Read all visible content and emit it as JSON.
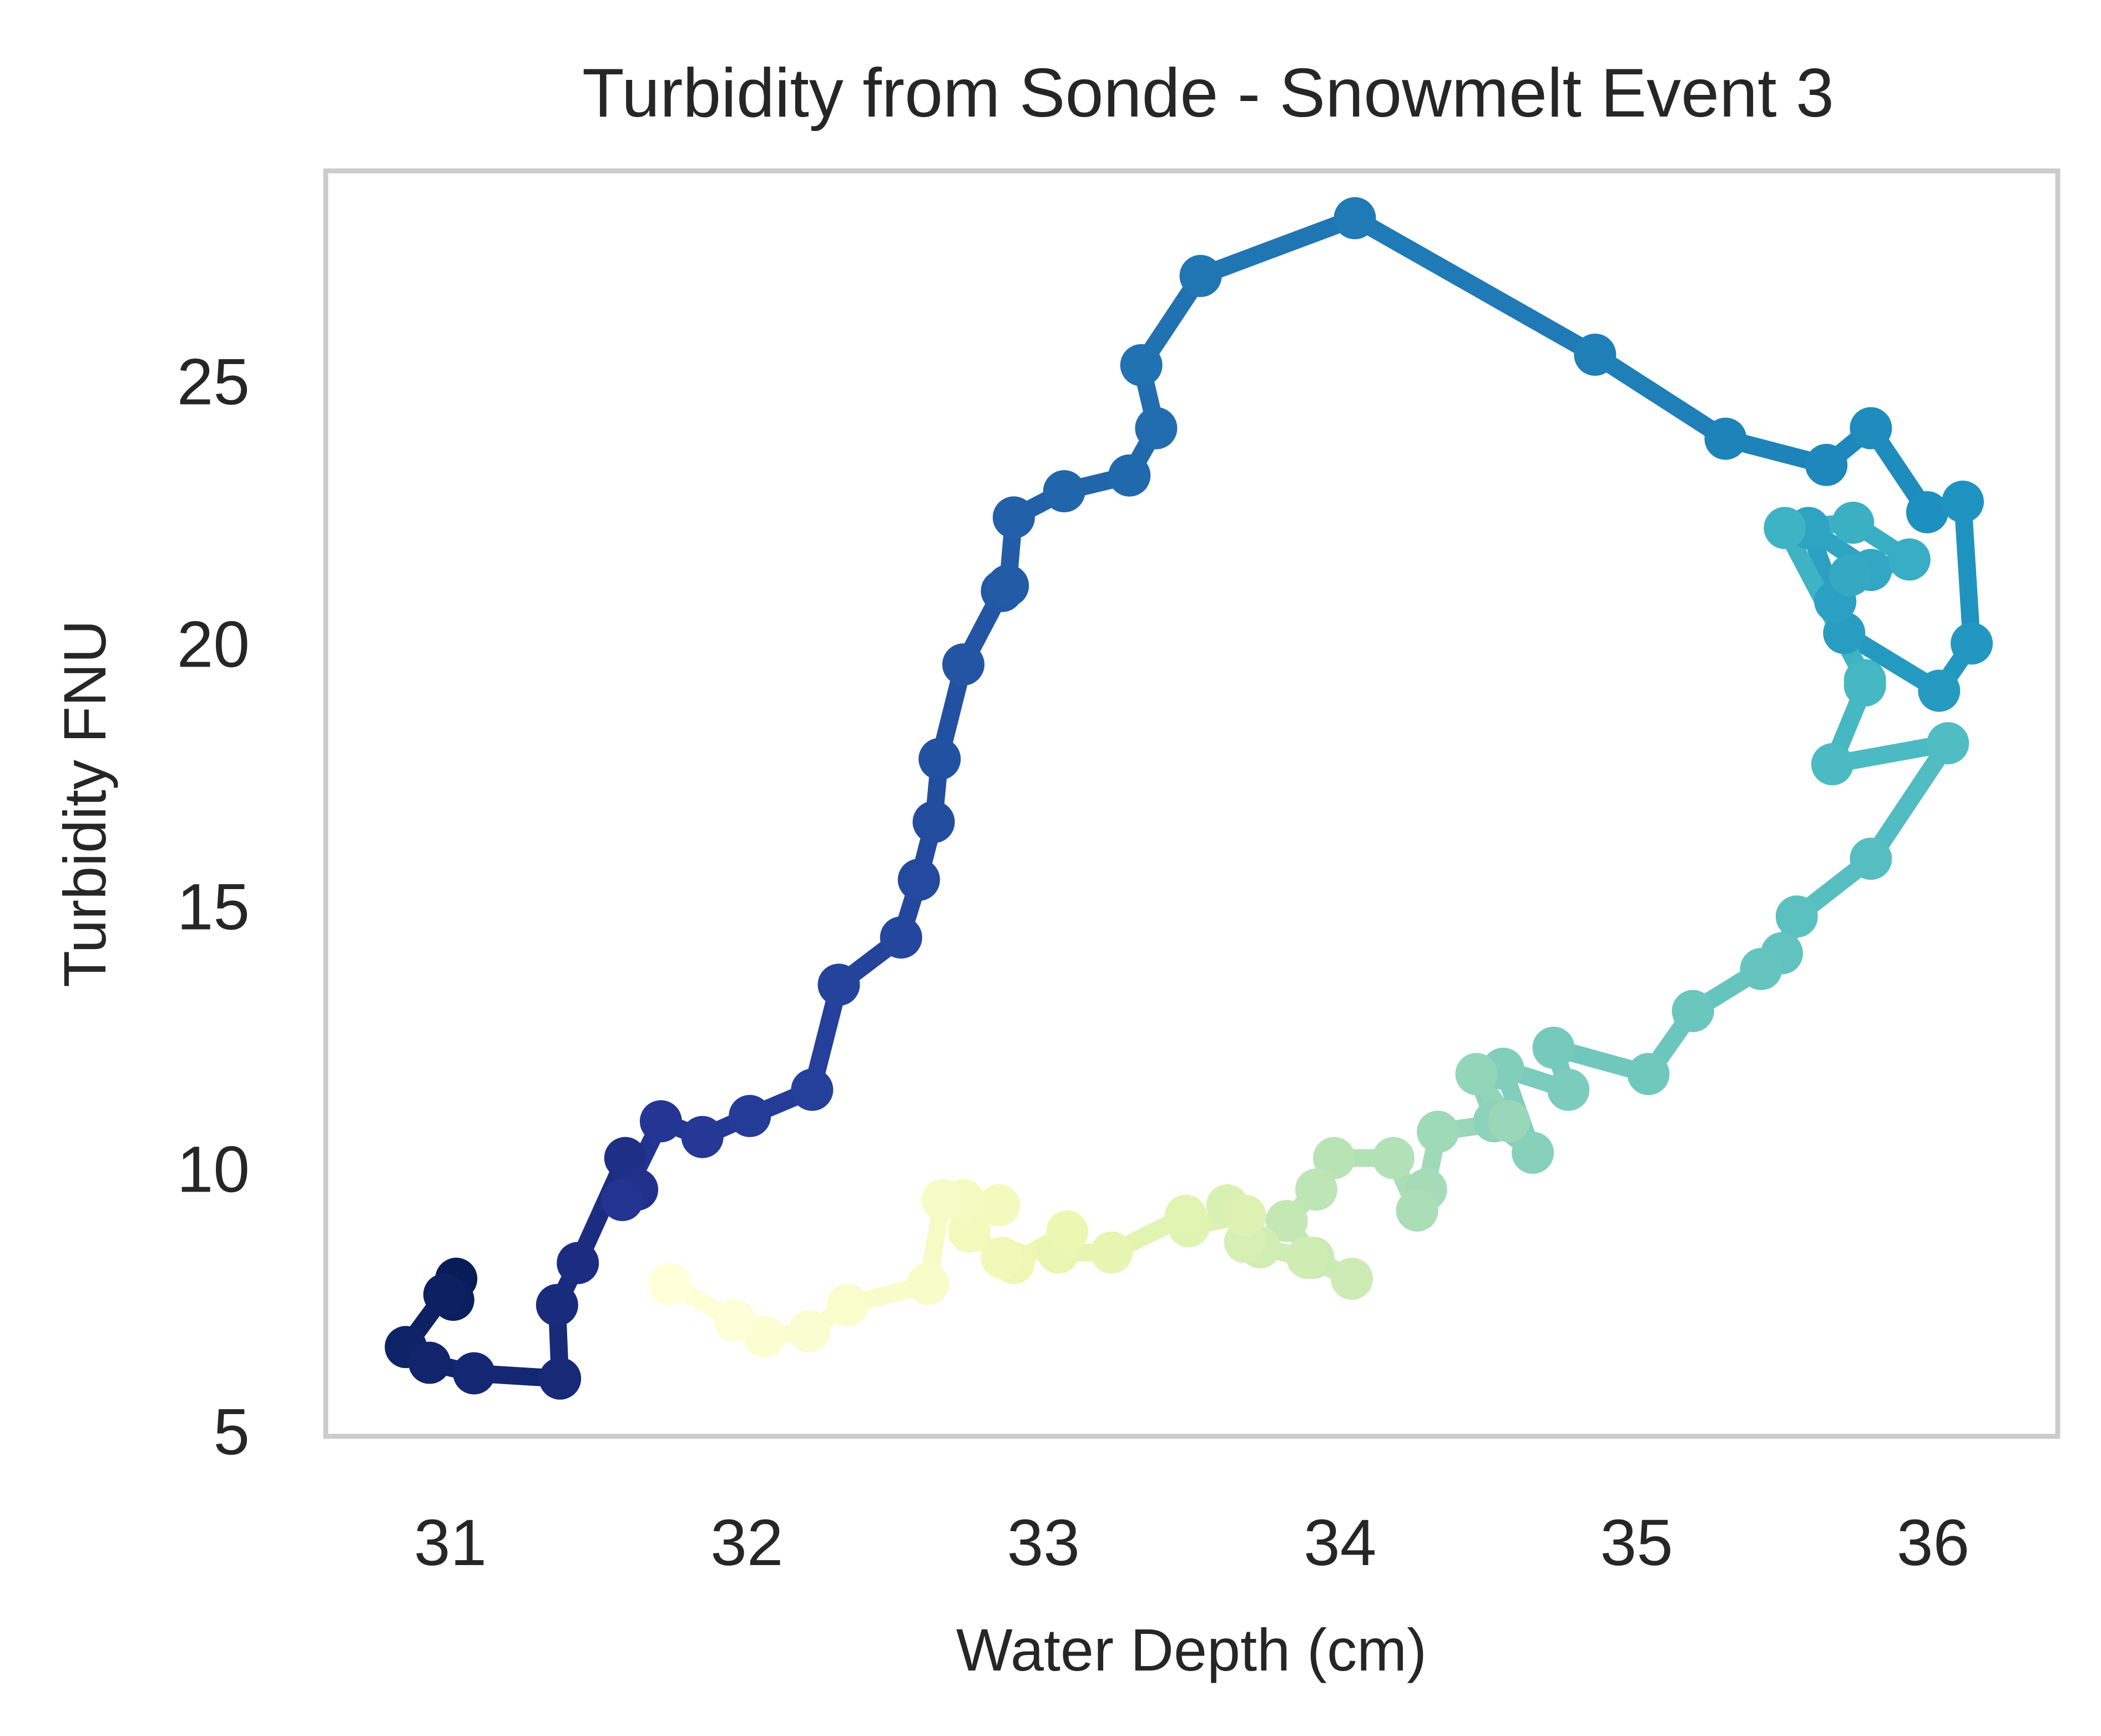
{
  "chart_data": {
    "type": "line",
    "title": "Turbidity from Sonde - Snowmelt Event 3",
    "xlabel": "Water Depth (cm)",
    "ylabel": "Turbidity FNU",
    "xlim": [
      30.58,
      36.42
    ],
    "ylim": [
      4.9,
      29.0
    ],
    "xticks": [
      31,
      32,
      33,
      34,
      35,
      36
    ],
    "yticks": [
      5,
      10,
      15,
      20,
      25
    ],
    "grid": false,
    "colormap": "YlGnBu",
    "colormap_direction": "dark-to-light along time order (first point darkest)",
    "colors": {
      "frame": "#cccccc",
      "text": "#262626",
      "background": "#ffffff"
    },
    "series": [
      {
        "x": [
          31.02,
          31.01,
          30.98,
          30.85,
          30.93,
          31.08,
          31.37,
          31.36,
          31.43,
          31.59,
          31.63,
          31.58,
          31.71,
          31.85,
          32.01,
          32.22,
          32.31,
          32.52,
          32.58,
          32.63,
          32.65,
          32.73,
          32.86,
          32.88,
          32.9,
          33.07,
          33.29,
          33.38,
          33.33,
          33.53,
          34.05,
          34.86,
          35.3,
          35.64,
          35.79,
          35.98,
          36.1,
          36.13,
          36.02,
          35.7,
          35.67,
          35.58,
          35.79,
          35.72,
          35.92,
          35.73,
          35.5,
          35.77,
          35.77,
          35.66,
          36.05,
          35.79,
          35.54,
          35.49,
          35.42,
          35.19,
          35.04,
          34.72,
          34.77,
          34.55,
          34.65,
          34.52,
          34.46,
          34.57,
          34.33,
          34.29,
          34.26,
          34.18,
          33.98,
          33.92,
          33.82,
          33.91,
          34.04,
          33.89,
          33.73,
          33.68,
          33.62,
          33.68,
          33.49,
          33.48,
          33.23,
          33.05,
          33.08,
          32.9,
          32.86,
          32.75,
          32.85,
          32.73,
          32.66,
          32.61,
          32.34,
          32.21,
          32.06,
          31.96,
          31.74
        ],
        "y": [
          7.9,
          7.5,
          7.6,
          6.6,
          6.3,
          6.1,
          6.0,
          7.4,
          8.2,
          10.2,
          9.6,
          9.4,
          10.9,
          10.6,
          11.0,
          11.5,
          13.5,
          14.4,
          15.5,
          16.6,
          17.8,
          19.6,
          21.0,
          21.1,
          22.4,
          22.9,
          23.2,
          24.1,
          25.3,
          27.0,
          28.1,
          25.5,
          23.9,
          23.4,
          24.1,
          22.5,
          22.7,
          20.0,
          19.1,
          20.2,
          20.8,
          22.2,
          21.4,
          21.3,
          21.6,
          22.3,
          22.2,
          19.3,
          19.2,
          17.7,
          18.1,
          15.9,
          14.8,
          14.1,
          13.8,
          13.0,
          11.8,
          12.3,
          11.5,
          11.9,
          10.3,
          10.9,
          11.8,
          10.9,
          10.7,
          9.6,
          9.2,
          10.2,
          10.2,
          9.6,
          9.0,
          8.3,
          7.9,
          8.3,
          8.5,
          8.6,
          9.3,
          9.1,
          8.9,
          9.1,
          8.4,
          8.4,
          8.8,
          8.2,
          8.3,
          8.8,
          9.3,
          9.4,
          9.4,
          7.8,
          7.4,
          6.9,
          6.8,
          7.1,
          7.8
        ]
      }
    ]
  }
}
